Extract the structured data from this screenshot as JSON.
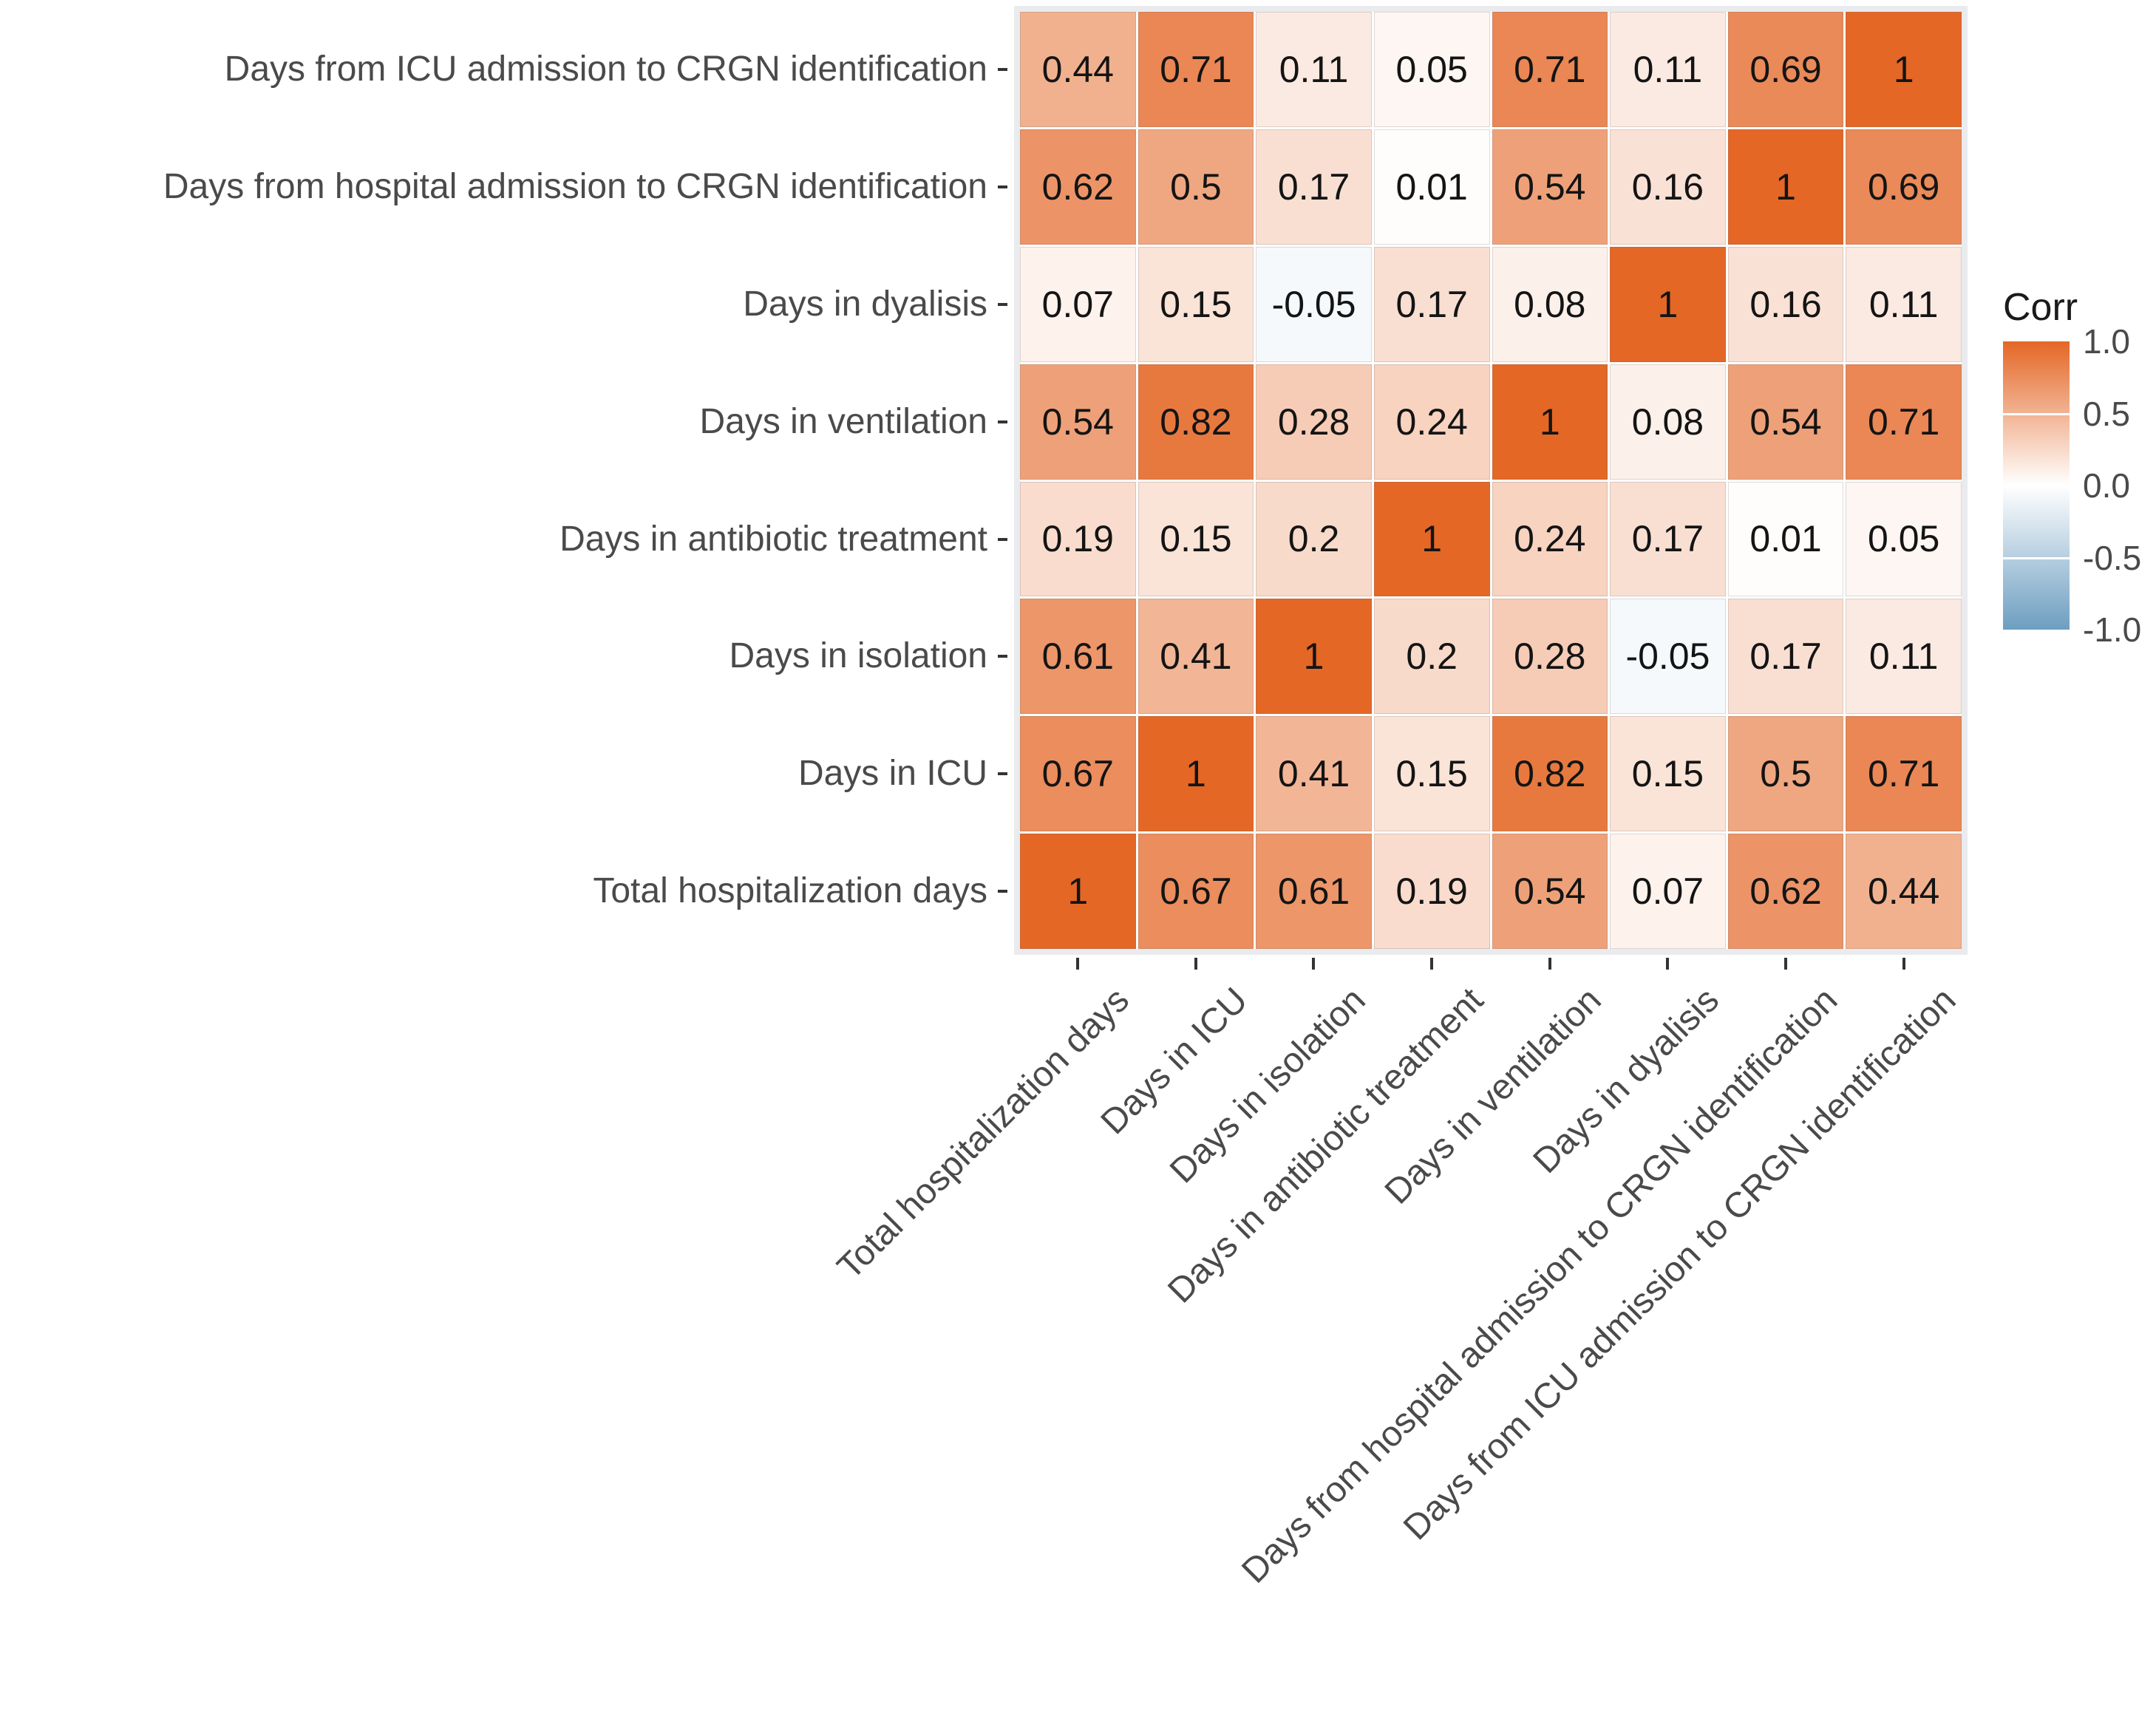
{
  "chart_data": {
    "type": "heatmap",
    "title": "",
    "columns": [
      "Total hospitalization days",
      "Days in ICU",
      "Days in isolation",
      "Days in antibiotic treatment",
      "Days in ventilation",
      "Days in dyalisis",
      "Days from hospital admission to CRGN identification",
      "Days from ICU admission to CRGN identification"
    ],
    "rows": [
      "Days from ICU admission to CRGN identification",
      "Days from hospital admission to CRGN identification",
      "Days in dyalisis",
      "Days in ventilation",
      "Days in antibiotic treatment",
      "Days in isolation",
      "Days in ICU",
      "Total hospitalization days"
    ],
    "matrix": [
      [
        0.44,
        0.71,
        0.11,
        0.05,
        0.71,
        0.11,
        0.69,
        1
      ],
      [
        0.62,
        0.5,
        0.17,
        0.01,
        0.54,
        0.16,
        1,
        0.69
      ],
      [
        0.07,
        0.15,
        -0.05,
        0.17,
        0.08,
        1,
        0.16,
        0.11
      ],
      [
        0.54,
        0.82,
        0.28,
        0.24,
        1,
        0.08,
        0.54,
        0.71
      ],
      [
        0.19,
        0.15,
        0.2,
        1,
        0.24,
        0.17,
        0.01,
        0.05
      ],
      [
        0.61,
        0.41,
        1,
        0.2,
        0.28,
        -0.05,
        0.17,
        0.11
      ],
      [
        0.67,
        1,
        0.41,
        0.15,
        0.82,
        0.15,
        0.5,
        0.71
      ],
      [
        1,
        0.67,
        0.61,
        0.19,
        0.54,
        0.07,
        0.62,
        0.44
      ]
    ],
    "legend": {
      "title": "Corr",
      "position": "right",
      "ticks": [
        "1.0",
        "0.5",
        "0.0",
        "-0.5",
        "-1.0"
      ],
      "tick_values": [
        1,
        0.5,
        0,
        -0.5,
        -1
      ],
      "range": [
        -1,
        1
      ]
    },
    "colors": {
      "high": "#E46726",
      "mid": "#FFFFFF",
      "low": "#6D9EC1",
      "panel_bg": "#E9EBEE",
      "tile_gap": "#FFFFFF",
      "axis_text": "#4A4A4A",
      "cell_text": "#141414",
      "tick_mark": "#333333"
    },
    "grid": false
  }
}
